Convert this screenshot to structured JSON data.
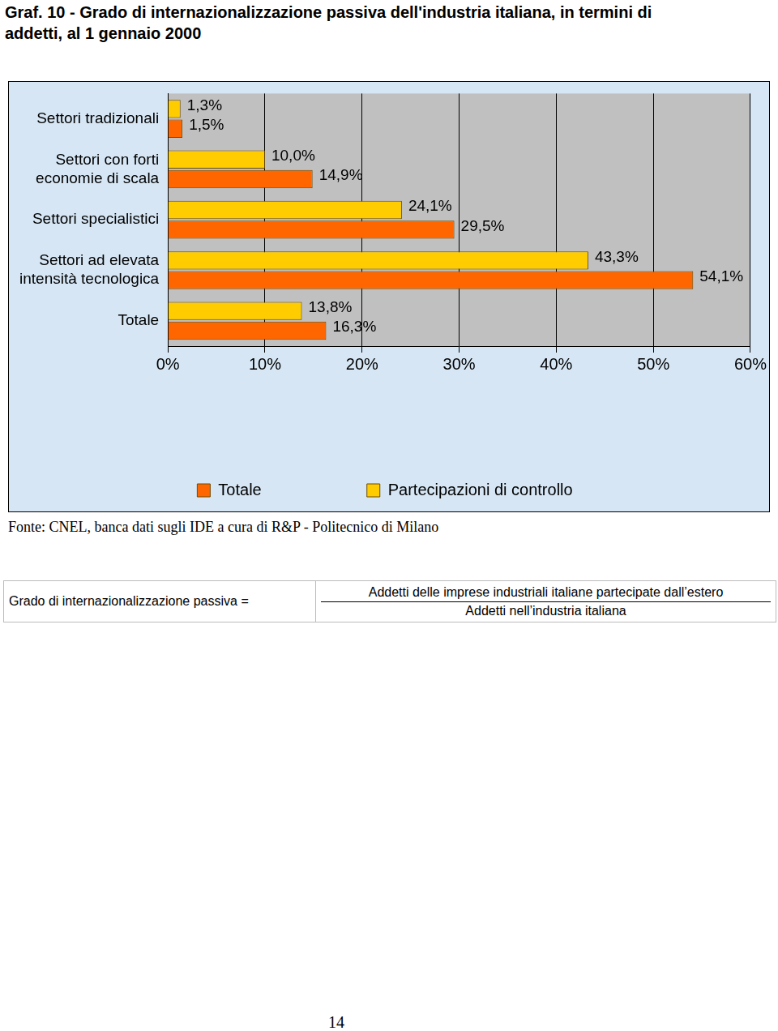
{
  "chart_data": {
    "type": "bar",
    "orientation": "horizontal",
    "title": "Graf. 10 - Grado di internazionalizzazione passiva dell'industria italiana, in termini di addetti, al 1 gennaio 2000",
    "categories": [
      [
        "Settori tradizionali"
      ],
      [
        "Settori con forti",
        "economie di scala"
      ],
      [
        "Settori specialistici"
      ],
      [
        "Settori ad elevata",
        "intensità tecnologica"
      ],
      [
        "Totale"
      ]
    ],
    "series": [
      {
        "name": "Partecipazioni di controllo",
        "color": "#ffcc00",
        "values": [
          1.3,
          10.0,
          24.1,
          43.3,
          13.8
        ],
        "value_labels": [
          "1,3%",
          "10,0%",
          "24,1%",
          "43,3%",
          "13,8%"
        ]
      },
      {
        "name": "Totale",
        "color": "#ff6600",
        "values": [
          1.5,
          14.9,
          29.5,
          54.1,
          16.3
        ],
        "value_labels": [
          "1,5%",
          "14,9%",
          "29,5%",
          "54,1%",
          "16,3%"
        ]
      }
    ],
    "xlim": [
      0,
      60
    ],
    "xticks": [
      {
        "value": 0,
        "label": "0%"
      },
      {
        "value": 10,
        "label": "10%"
      },
      {
        "value": 20,
        "label": "20%"
      },
      {
        "value": 30,
        "label": "30%"
      },
      {
        "value": 40,
        "label": "40%"
      },
      {
        "value": 50,
        "label": "50%"
      },
      {
        "value": 60,
        "label": "60%"
      }
    ],
    "grid": true,
    "legend": "bottom",
    "data_labels": true
  },
  "source": "Fonte: CNEL, banca dati sugli IDE a cura di R&P - Politecnico di Milano",
  "formula": {
    "left": "Grado di internazionalizzazione passiva =",
    "numerator": "Addetti delle imprese industriali italiane partecipate dall’estero",
    "denominator": "Addetti nell’industria italiana"
  },
  "page_number": 14
}
